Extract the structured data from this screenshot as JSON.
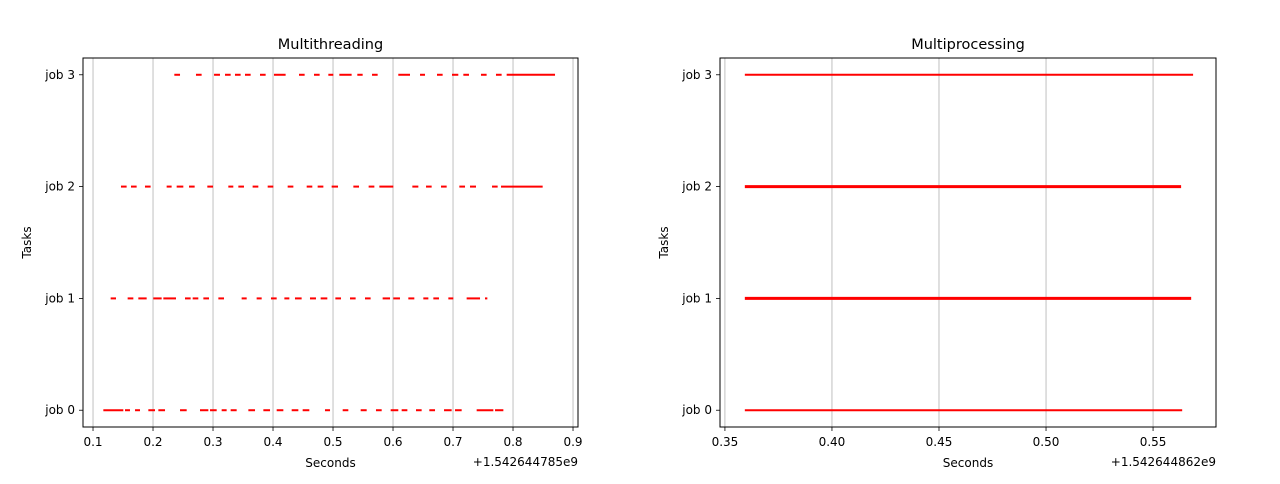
{
  "chart_data": [
    {
      "type": "timeline",
      "title": "Multithreading",
      "xlabel": "Seconds",
      "ylabel": "Tasks",
      "x_offset_label": "+1.542644785e9",
      "xlim": [
        0.0833,
        0.9083
      ],
      "xticks": [
        0.1,
        0.2,
        0.3,
        0.4,
        0.5,
        0.6,
        0.7,
        0.8,
        0.9
      ],
      "xtick_labels": [
        "0.1",
        "0.2",
        "0.3",
        "0.4",
        "0.5",
        "0.6",
        "0.7",
        "0.8",
        "0.9"
      ],
      "grid": "x",
      "color": "#ff0000",
      "categories": [
        "job 0",
        "job 1",
        "job 2",
        "job 3"
      ],
      "series": [
        {
          "category": "job 0",
          "intervals": [
            [
              0.1172,
              0.1505
            ],
            [
              0.1533,
              0.1616
            ],
            [
              0.17,
              0.1783
            ],
            [
              0.1922,
              0.2033
            ],
            [
              0.2089,
              0.22
            ],
            [
              0.245,
              0.2561
            ],
            [
              0.2783,
              0.2922
            ],
            [
              0.295,
              0.3061
            ],
            [
              0.3144,
              0.3227
            ],
            [
              0.3294,
              0.3394
            ],
            [
              0.3589,
              0.37
            ],
            [
              0.3839,
              0.395
            ],
            [
              0.4061,
              0.4172
            ],
            [
              0.4311,
              0.4422
            ],
            [
              0.4494,
              0.4605
            ],
            [
              0.4866,
              0.495
            ],
            [
              0.5161,
              0.5255
            ],
            [
              0.5461,
              0.5561
            ],
            [
              0.5716,
              0.5811
            ],
            [
              0.5961,
              0.6088
            ],
            [
              0.6144,
              0.6239
            ],
            [
              0.6383,
              0.6477
            ],
            [
              0.6605,
              0.67
            ],
            [
              0.685,
              0.6977
            ],
            [
              0.7033,
              0.7144
            ],
            [
              0.7394,
              0.7672
            ],
            [
              0.77,
              0.7839
            ]
          ]
        },
        {
          "category": "job 1",
          "intervals": [
            [
              0.1294,
              0.1383
            ],
            [
              0.1577,
              0.1672
            ],
            [
              0.1755,
              0.1894
            ],
            [
              0.2005,
              0.2144
            ],
            [
              0.2172,
              0.2383
            ],
            [
              0.2533,
              0.2627
            ],
            [
              0.2661,
              0.2755
            ],
            [
              0.2839,
              0.2933
            ],
            [
              0.3089,
              0.3183
            ],
            [
              0.3477,
              0.3561
            ],
            [
              0.3727,
              0.3811
            ],
            [
              0.3966,
              0.4061
            ],
            [
              0.4189,
              0.4272
            ],
            [
              0.4366,
              0.4477
            ],
            [
              0.4616,
              0.4716
            ],
            [
              0.4794,
              0.4905
            ],
            [
              0.5039,
              0.5133
            ],
            [
              0.5283,
              0.5377
            ],
            [
              0.5533,
              0.5627
            ],
            [
              0.5827,
              0.595
            ],
            [
              0.6005,
              0.6116
            ],
            [
              0.6255,
              0.6355
            ],
            [
              0.6505,
              0.6589
            ],
            [
              0.6672,
              0.6766
            ],
            [
              0.6922,
              0.7005
            ],
            [
              0.7227,
              0.745
            ],
            [
              0.7533,
              0.7572
            ]
          ]
        },
        {
          "category": "job 2",
          "intervals": [
            [
              0.1466,
              0.156
            ],
            [
              0.1633,
              0.1727
            ],
            [
              0.1866,
              0.196
            ],
            [
              0.2227,
              0.231
            ],
            [
              0.2394,
              0.2505
            ],
            [
              0.26,
              0.2694
            ],
            [
              0.2905,
              0.3
            ],
            [
              0.3255,
              0.3338
            ],
            [
              0.3422,
              0.3516
            ],
            [
              0.366,
              0.3755
            ],
            [
              0.3911,
              0.4005
            ],
            [
              0.4244,
              0.4339
            ],
            [
              0.4561,
              0.4655
            ],
            [
              0.4744,
              0.4839
            ],
            [
              0.4977,
              0.5083
            ],
            [
              0.5339,
              0.5433
            ],
            [
              0.5594,
              0.5689
            ],
            [
              0.5772,
              0.6005
            ],
            [
              0.6322,
              0.6422
            ],
            [
              0.655,
              0.6644
            ],
            [
              0.68,
              0.6894
            ],
            [
              0.7105,
              0.72
            ],
            [
              0.7283,
              0.7383
            ],
            [
              0.765,
              0.7744
            ],
            [
              0.78,
              0.8494
            ]
          ]
        },
        {
          "category": "job 3",
          "intervals": [
            [
              0.2355,
              0.245
            ],
            [
              0.2716,
              0.281
            ],
            [
              0.3017,
              0.3116
            ],
            [
              0.32,
              0.3294
            ],
            [
              0.3366,
              0.346
            ],
            [
              0.3533,
              0.3627
            ],
            [
              0.3783,
              0.3877
            ],
            [
              0.4016,
              0.421
            ],
            [
              0.4433,
              0.4527
            ],
            [
              0.4683,
              0.4777
            ],
            [
              0.4922,
              0.5005
            ],
            [
              0.5105,
              0.531
            ],
            [
              0.5405,
              0.5494
            ],
            [
              0.565,
              0.5744
            ],
            [
              0.6088,
              0.6283
            ],
            [
              0.645,
              0.6533
            ],
            [
              0.6733,
              0.6827
            ],
            [
              0.6983,
              0.7088
            ],
            [
              0.7172,
              0.7266
            ],
            [
              0.7466,
              0.756
            ],
            [
              0.7716,
              0.781
            ],
            [
              0.7894,
              0.87
            ]
          ]
        }
      ]
    },
    {
      "type": "timeline",
      "title": "Multiprocessing",
      "xlabel": "Seconds",
      "ylabel": "Tasks",
      "x_offset_label": "+1.542644862e9",
      "xlim": [
        0.3477,
        0.5794
      ],
      "xticks": [
        0.35,
        0.4,
        0.45,
        0.5,
        0.55
      ],
      "xtick_labels": [
        "0.35",
        "0.40",
        "0.45",
        "0.50",
        "0.55"
      ],
      "grid": "x",
      "color": "#ff0000",
      "categories": [
        "job 0",
        "job 1",
        "job 2",
        "job 3"
      ],
      "series": [
        {
          "category": "job 0",
          "intervals": [
            [
              0.3593,
              0.5636
            ]
          ]
        },
        {
          "category": "job 1",
          "intervals": [
            [
              0.3593,
              0.5678
            ]
          ]
        },
        {
          "category": "job 2",
          "intervals": [
            [
              0.3593,
              0.5631
            ]
          ]
        },
        {
          "category": "job 3",
          "intervals": [
            [
              0.3593,
              0.5687
            ]
          ]
        }
      ]
    }
  ]
}
